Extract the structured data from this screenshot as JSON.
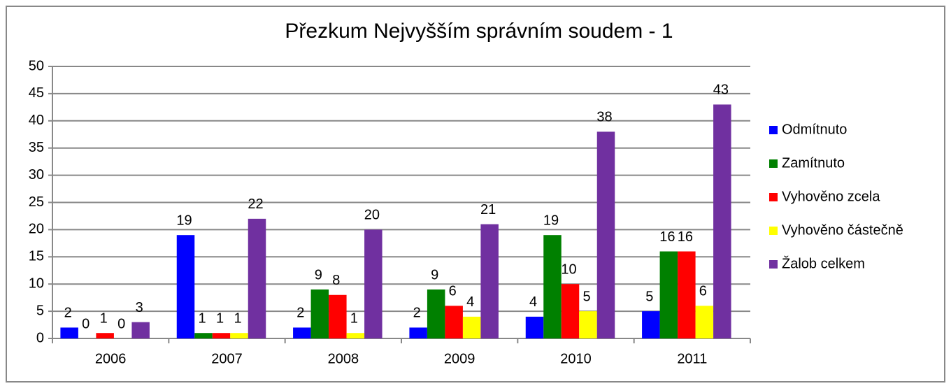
{
  "chart_data": {
    "type": "bar",
    "title": "Přezkum Nejvyšším správním soudem - 1",
    "categories": [
      "2006",
      "2007",
      "2008",
      "2009",
      "2010",
      "2011"
    ],
    "series": [
      {
        "name": "Odmítnuto",
        "color": "#0000ff",
        "values": [
          2,
          19,
          2,
          2,
          4,
          5
        ]
      },
      {
        "name": "Zamítnuto",
        "color": "#008000",
        "values": [
          0,
          1,
          9,
          9,
          19,
          16
        ]
      },
      {
        "name": "Vyhověno zcela",
        "color": "#ff0000",
        "values": [
          1,
          1,
          8,
          6,
          10,
          16
        ]
      },
      {
        "name": "Vyhověno částečně",
        "color": "#ffff00",
        "values": [
          0,
          1,
          1,
          4,
          5,
          6
        ]
      },
      {
        "name": "Žalob celkem",
        "color": "#7030a0",
        "values": [
          3,
          22,
          20,
          21,
          38,
          43
        ]
      }
    ],
    "ylim": [
      0,
      50
    ],
    "yticks": [
      0,
      5,
      10,
      15,
      20,
      25,
      30,
      35,
      40,
      45,
      50
    ],
    "grid": true,
    "legend": "right"
  }
}
